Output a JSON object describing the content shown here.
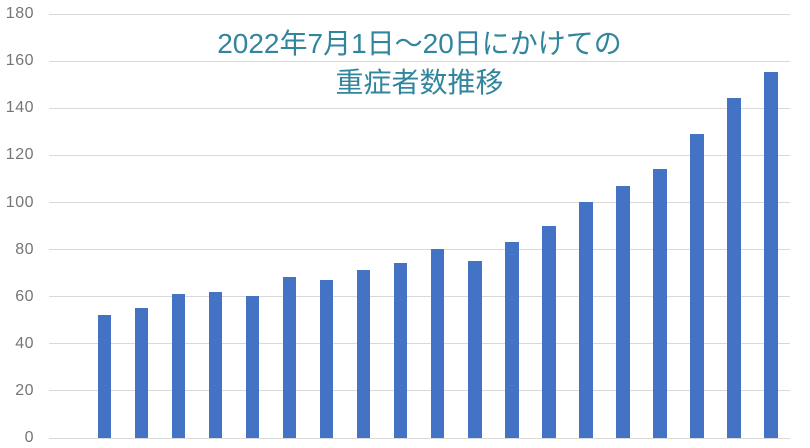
{
  "chart_data": {
    "type": "bar",
    "title": "2022年7月1日～20日にかけての重症者数推移",
    "title_line1": "2022年7月1日～20日にかけての",
    "title_line2": "重症者数推移",
    "values": [
      52,
      55,
      61,
      62,
      60,
      68,
      67,
      71,
      74,
      80,
      75,
      83,
      90,
      100,
      107,
      114,
      129,
      144,
      155
    ],
    "y_ticks": [
      180,
      160,
      140,
      120,
      100,
      80,
      60,
      40,
      20,
      0
    ],
    "ylim": [
      0,
      180
    ],
    "xlabel": "",
    "ylabel": "",
    "x_tick_labels_visible": false,
    "legend": "none",
    "grid": "horizontal",
    "colors": {
      "bar": "#4472c4",
      "title": "#31859c",
      "axis_labels": "#757575",
      "gridlines": "#d9d9d9",
      "background": "#ffffff"
    }
  }
}
